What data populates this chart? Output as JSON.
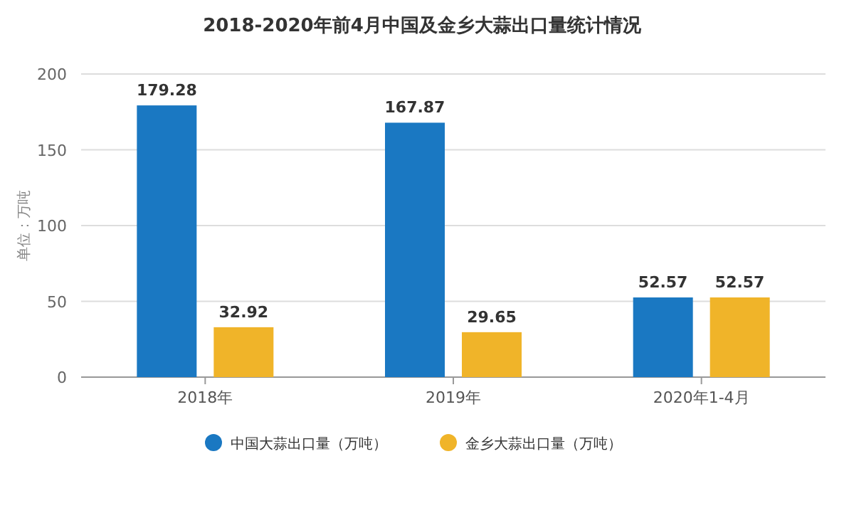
{
  "chart_data": {
    "type": "bar",
    "title": "2018-2020年前4月中国及金乡大蒜出口量统计情况",
    "ylabel": "单位：万吨",
    "categories": [
      "2018年",
      "2019年",
      "2020年1-4月"
    ],
    "series": [
      {
        "name": "中国大蒜出口量（万吨）",
        "color": "#1a78c2",
        "values": [
          179.28,
          167.87,
          52.57
        ]
      },
      {
        "name": "金乡大蒜出口量（万吨）",
        "color": "#f0b429",
        "values": [
          32.92,
          29.65,
          52.57
        ]
      }
    ],
    "ylim": [
      0,
      200
    ],
    "yticks": [
      0,
      50,
      100,
      150,
      200
    ],
    "grid": "y",
    "legend": "bottom",
    "data_labels": true
  }
}
